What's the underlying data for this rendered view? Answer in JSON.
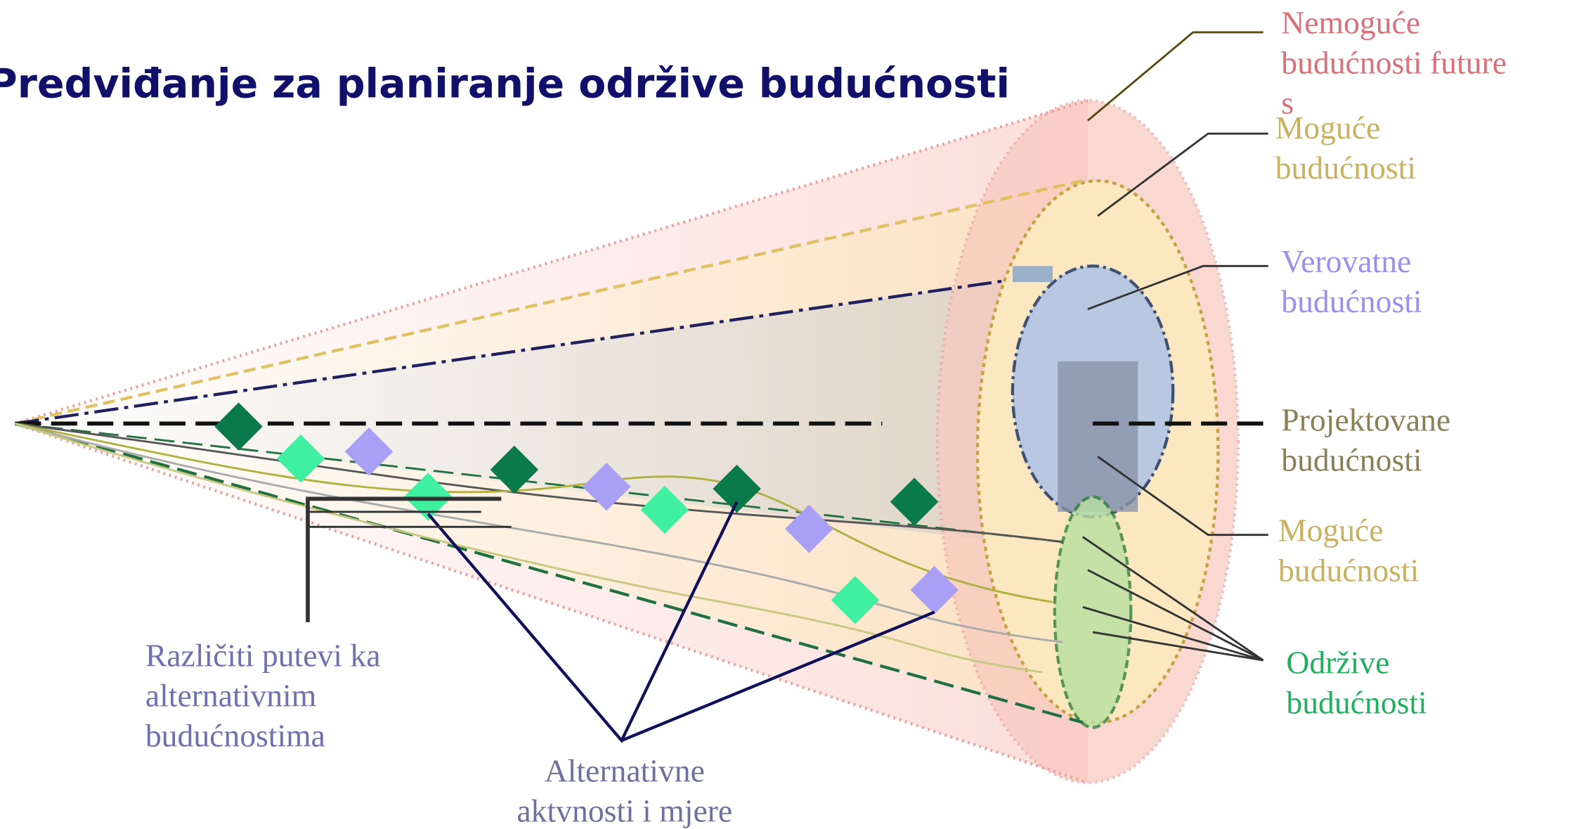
{
  "title": "Predviđanje za planiranje održive budućnosti",
  "labels": [
    {
      "lines": [
        "Nemoguće",
        "budućnosti  future",
        "s"
      ]
    },
    {
      "lines": [
        "Moguće",
        "budućnosti"
      ]
    },
    {
      "lines": [
        "Verovatne",
        "budućnosti"
      ]
    },
    {
      "lines": [
        "Projektovane",
        "budućnosti"
      ]
    },
    {
      "lines": [
        "Moguće",
        "budućnosti"
      ]
    },
    {
      "lines": [
        "Održive",
        "budućnosti"
      ]
    }
  ],
  "paths_label": {
    "lines": [
      "Različiti putevi ka",
      "alternativnim",
      "budućnostima"
    ]
  },
  "actions_label": {
    "lines": [
      "Alternativne",
      "aktvnosti i mjere"
    ]
  }
}
